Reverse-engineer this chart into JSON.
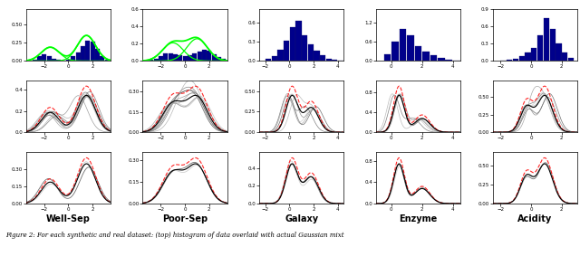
{
  "col_labels": [
    "Well-Sep",
    "Poor-Sep",
    "Galaxy",
    "Enzyme",
    "Acidity"
  ],
  "caption": "Figure 2: For each synthetic and real dataset: (top) histogram of data overlaid with actual Gaussian mixt",
  "figsize": [
    6.4,
    2.94
  ],
  "dpi": 100,
  "well_sep": {
    "xlim": [
      -3.5,
      3.5
    ],
    "ylim_hist": [
      0,
      0.7
    ],
    "hist_edges": [
      -3.0,
      -2.6,
      -2.2,
      -1.8,
      -1.4,
      -1.0,
      -0.6,
      -0.2,
      0.2,
      0.6,
      1.0,
      1.4,
      1.8,
      2.2,
      2.6,
      3.0
    ],
    "hist_vals": [
      0.02,
      0.06,
      0.09,
      0.06,
      0.03,
      0.02,
      0.01,
      0.02,
      0.06,
      0.12,
      0.2,
      0.28,
      0.26,
      0.16,
      0.07,
      0.02
    ],
    "has_gmm_overlay": true,
    "gmm_means": [
      -1.5,
      1.5
    ],
    "gmm_stds": [
      0.75,
      0.75
    ],
    "gmm_weights": [
      0.35,
      0.65
    ],
    "ylim_curves": [
      0,
      0.7
    ],
    "row2_n_samples": 9,
    "row2_noise": 0.35,
    "row3_n_samples": 2,
    "row3_noise": 0.1
  },
  "poor_sep": {
    "xlim": [
      -3.5,
      3.5
    ],
    "ylim_hist": [
      0,
      0.6
    ],
    "hist_edges": [
      -3.0,
      -2.6,
      -2.2,
      -1.8,
      -1.4,
      -1.0,
      -0.6,
      -0.2,
      0.2,
      0.6,
      1.0,
      1.4,
      1.8,
      2.2,
      2.6,
      3.0
    ],
    "hist_vals": [
      0.01,
      0.03,
      0.06,
      0.09,
      0.09,
      0.08,
      0.07,
      0.06,
      0.07,
      0.09,
      0.11,
      0.13,
      0.12,
      0.08,
      0.05,
      0.02
    ],
    "has_gmm_overlay": true,
    "gmm_means": [
      -1.0,
      1.0
    ],
    "gmm_stds": [
      0.85,
      0.85
    ],
    "gmm_weights": [
      0.45,
      0.55
    ],
    "ylim_curves": [
      0,
      0.5
    ],
    "row2_n_samples": 9,
    "row2_noise": 0.35,
    "row3_n_samples": 2,
    "row3_noise": 0.1
  },
  "galaxy": {
    "xlim": [
      -2.5,
      4.5
    ],
    "ylim_hist": [
      0,
      0.8
    ],
    "hist_edges": [
      -2.0,
      -1.5,
      -1.0,
      -0.5,
      0.0,
      0.5,
      1.0,
      1.5,
      2.0,
      2.5,
      3.0,
      3.5,
      4.0
    ],
    "hist_vals": [
      0.03,
      0.08,
      0.18,
      0.32,
      0.52,
      0.62,
      0.4,
      0.26,
      0.16,
      0.09,
      0.04,
      0.02,
      0.01
    ],
    "has_gmm_overlay": false,
    "gmm_means": [
      0.2,
      1.8
    ],
    "gmm_stds": [
      0.5,
      0.6
    ],
    "gmm_weights": [
      0.55,
      0.45
    ],
    "ylim_curves": [
      0,
      0.7
    ],
    "row2_n_samples": 6,
    "row2_noise": 0.3,
    "row3_n_samples": 2,
    "row3_noise": 0.08
  },
  "enzyme": {
    "xlim": [
      -1.0,
      4.5
    ],
    "ylim_hist": [
      0,
      1.6
    ],
    "hist_edges": [
      -0.5,
      0.0,
      0.5,
      1.0,
      1.5,
      2.0,
      2.5,
      3.0,
      3.5,
      4.0
    ],
    "hist_vals": [
      0.2,
      0.6,
      1.0,
      0.8,
      0.45,
      0.3,
      0.18,
      0.1,
      0.05,
      0.02
    ],
    "has_gmm_overlay": false,
    "gmm_means": [
      0.5,
      2.0
    ],
    "gmm_stds": [
      0.35,
      0.5
    ],
    "gmm_weights": [
      0.65,
      0.35
    ],
    "ylim_curves": [
      0,
      1.6
    ],
    "row2_n_samples": 6,
    "row2_noise": 0.25,
    "row3_n_samples": 2,
    "row3_noise": 0.06
  },
  "acidity": {
    "xlim": [
      -2.5,
      3.0
    ],
    "ylim_hist": [
      0,
      0.9
    ],
    "hist_edges": [
      -2.0,
      -1.6,
      -1.2,
      -0.8,
      -0.4,
      0.0,
      0.4,
      0.8,
      1.2,
      1.6,
      2.0,
      2.4
    ],
    "hist_vals": [
      0.01,
      0.02,
      0.04,
      0.08,
      0.14,
      0.22,
      0.45,
      0.75,
      0.55,
      0.3,
      0.14,
      0.06
    ],
    "has_gmm_overlay": false,
    "gmm_means": [
      -0.3,
      0.9
    ],
    "gmm_stds": [
      0.4,
      0.5
    ],
    "gmm_weights": [
      0.35,
      0.65
    ],
    "ylim_curves": [
      0,
      0.9
    ],
    "row2_n_samples": 6,
    "row2_noise": 0.25,
    "row3_n_samples": 2,
    "row3_noise": 0.06
  }
}
